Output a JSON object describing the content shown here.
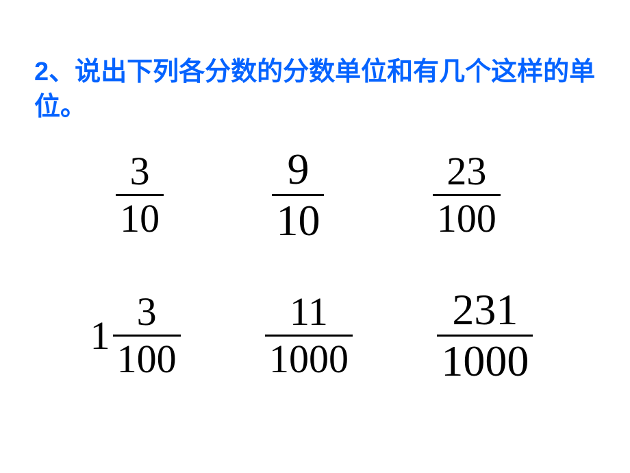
{
  "title": {
    "text": "2、说出下列各分数的分数单位和有几个这样的单位。",
    "color": "#0563ff",
    "fontsize": 38
  },
  "fractions": {
    "row1": [
      {
        "whole": "",
        "numerator": "3",
        "denominator": "10"
      },
      {
        "whole": "",
        "numerator": "9",
        "denominator": "10"
      },
      {
        "whole": "",
        "numerator": "23",
        "denominator": "100"
      }
    ],
    "row2": [
      {
        "whole": "1",
        "numerator": "3",
        "denominator": "100"
      },
      {
        "whole": "",
        "numerator": "11",
        "denominator": "1000"
      },
      {
        "whole": "",
        "numerator": "231",
        "denominator": "1000"
      }
    ]
  },
  "style": {
    "background": "#ffffff",
    "fraction_color": "#000000",
    "bar_color": "#000000",
    "fraction_fontsize": 58,
    "font_family_title": "SimHei",
    "font_family_math": "Times New Roman"
  }
}
